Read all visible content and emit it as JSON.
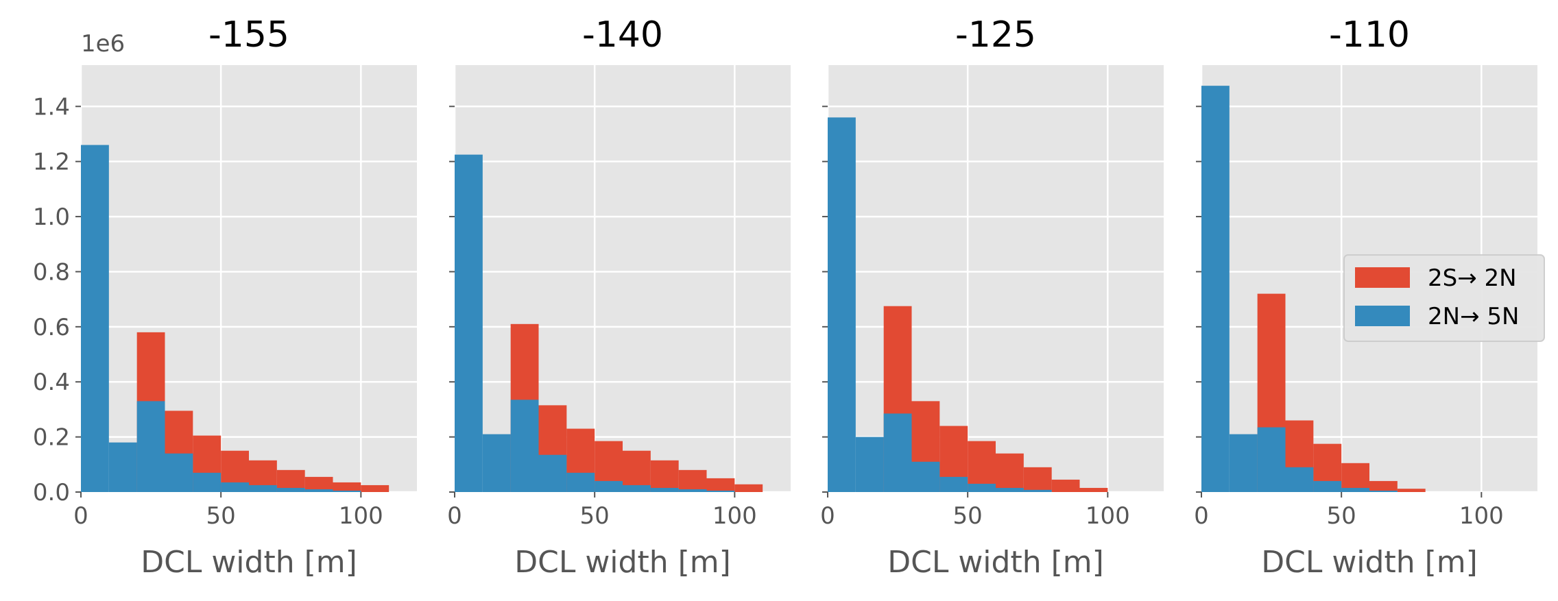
{
  "chart_data": [
    {
      "type": "bar",
      "title": "-155",
      "xlabel": "DCL width [m]",
      "ylabel": "",
      "y_offset_label": "1e6",
      "xlim": [
        0,
        120
      ],
      "ylim": [
        0,
        1550000
      ],
      "xticks": [
        0,
        50,
        100
      ],
      "yticks": [
        0,
        200000,
        400000,
        600000,
        800000,
        1000000,
        1200000,
        1400000
      ],
      "ytick_labels": [
        "0.0",
        "0.2",
        "0.4",
        "0.6",
        "0.8",
        "1.0",
        "1.2",
        "1.4"
      ],
      "bin_width": 10,
      "series": [
        {
          "name": "2S→ 2N",
          "color": "#E24A33",
          "bin_starts": [
            0,
            10,
            20,
            30,
            40,
            50,
            60,
            70,
            80,
            90,
            100
          ],
          "values": [
            0,
            0,
            580000,
            295000,
            205000,
            150000,
            115000,
            80000,
            55000,
            35000,
            25000
          ]
        },
        {
          "name": "2N→ 5N",
          "color": "#348ABD",
          "bin_starts": [
            0,
            10,
            20,
            30,
            40,
            50,
            60,
            70,
            80,
            90,
            100
          ],
          "values": [
            1260000,
            180000,
            330000,
            140000,
            70000,
            35000,
            25000,
            15000,
            10000,
            5000,
            0
          ]
        }
      ]
    },
    {
      "type": "bar",
      "title": "-140",
      "xlabel": "DCL width [m]",
      "ylabel": "",
      "xlim": [
        0,
        120
      ],
      "ylim": [
        0,
        1550000
      ],
      "xticks": [
        0,
        50,
        100
      ],
      "bin_width": 10,
      "series": [
        {
          "name": "2S→ 2N",
          "color": "#E24A33",
          "bin_starts": [
            0,
            10,
            20,
            30,
            40,
            50,
            60,
            70,
            80,
            90,
            100
          ],
          "values": [
            0,
            0,
            610000,
            315000,
            230000,
            185000,
            150000,
            115000,
            80000,
            50000,
            28000
          ]
        },
        {
          "name": "2N→ 5N",
          "color": "#348ABD",
          "bin_starts": [
            0,
            10,
            20,
            30,
            40,
            50,
            60,
            70,
            80,
            90,
            100
          ],
          "values": [
            1225000,
            210000,
            335000,
            135000,
            70000,
            40000,
            25000,
            15000,
            10000,
            5000,
            0
          ]
        }
      ]
    },
    {
      "type": "bar",
      "title": "-125",
      "xlabel": "DCL width [m]",
      "ylabel": "",
      "xlim": [
        0,
        120
      ],
      "ylim": [
        0,
        1550000
      ],
      "xticks": [
        0,
        50,
        100
      ],
      "bin_width": 10,
      "series": [
        {
          "name": "2S→ 2N",
          "color": "#E24A33",
          "bin_starts": [
            0,
            10,
            20,
            30,
            40,
            50,
            60,
            70,
            80,
            90
          ],
          "values": [
            0,
            0,
            675000,
            330000,
            240000,
            185000,
            140000,
            90000,
            45000,
            15000
          ]
        },
        {
          "name": "2N→ 5N",
          "color": "#348ABD",
          "bin_starts": [
            0,
            10,
            20,
            30,
            40,
            50,
            60,
            70,
            80,
            90
          ],
          "values": [
            1360000,
            200000,
            285000,
            110000,
            55000,
            30000,
            15000,
            8000,
            0,
            0
          ]
        }
      ]
    },
    {
      "type": "bar",
      "title": "-110",
      "xlabel": "DCL width [m]",
      "ylabel": "",
      "xlim": [
        0,
        120
      ],
      "ylim": [
        0,
        1550000
      ],
      "xticks": [
        0,
        50,
        100
      ],
      "bin_width": 10,
      "legend_position": "center-right",
      "series": [
        {
          "name": "2S→ 2N",
          "color": "#E24A33",
          "bin_starts": [
            0,
            10,
            20,
            30,
            40,
            50,
            60,
            70
          ],
          "values": [
            0,
            0,
            720000,
            260000,
            175000,
            105000,
            40000,
            12000
          ]
        },
        {
          "name": "2N→ 5N",
          "color": "#348ABD",
          "bin_starts": [
            0,
            10,
            20,
            30,
            40,
            50,
            60,
            70
          ],
          "values": [
            1475000,
            210000,
            235000,
            90000,
            40000,
            15000,
            5000,
            0
          ]
        }
      ]
    }
  ],
  "legend": {
    "entries": [
      {
        "label": "2S→ 2N",
        "color": "#E24A33"
      },
      {
        "label": "2N→ 5N",
        "color": "#348ABD"
      }
    ]
  },
  "style": {
    "axes_bg": "#E5E5E5",
    "grid_color": "#FFFFFF",
    "tick_color": "#555555"
  }
}
